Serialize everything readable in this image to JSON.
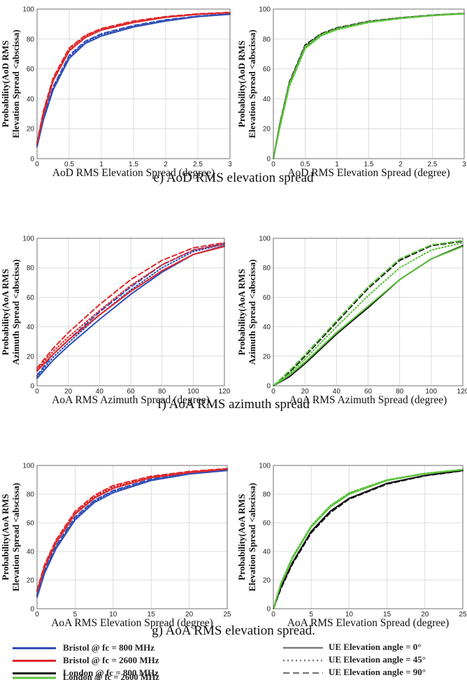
{
  "captions": {
    "e": "e) AoD RMS elevation spread",
    "f": "f) AoA RMS azimuth spread",
    "g": "g) AoA RMS elevation spread."
  },
  "legend": {
    "colors": [
      {
        "label": "Bristol @ fc = 800 MHz",
        "color": "#2f4fb8"
      },
      {
        "label": "Bristol @ fc = 2600 MHz",
        "color": "#e0272a"
      },
      {
        "label": "London @ fc = 800 MHz",
        "color": "#111111"
      },
      {
        "label": "London @ fc = 2600 MHz",
        "color": "#5cc23c"
      }
    ],
    "styles": [
      {
        "label": "UE Elevation angle = 0°",
        "dash": "solid"
      },
      {
        "label": "UE Elevation angle = 45°",
        "dash": "dotted"
      },
      {
        "label": "UE Elevation angle = 90°",
        "dash": "dashed"
      }
    ]
  },
  "chart_data": [
    {
      "id": "e-left",
      "type": "line",
      "xlabel": "AoD RMS Elevation Spread (degree)",
      "ylabel": [
        "Probability(AoD RMS",
        "Elevation Spread <abscissa)"
      ],
      "xlim": [
        0,
        3
      ],
      "ylim": [
        0,
        100
      ],
      "xticks": [
        "0",
        "0.5",
        "1",
        "1.5",
        "2",
        "2.5",
        "3"
      ],
      "yticks": [
        "0",
        "20",
        "40",
        "60",
        "80",
        "100"
      ],
      "grid": true,
      "series": [
        {
          "color": "#2f4fb8",
          "dash": "solid",
          "x": [
            0,
            0.1,
            0.25,
            0.5,
            0.75,
            1,
            1.5,
            2,
            2.5,
            3
          ],
          "y": [
            8,
            26,
            46,
            67,
            77,
            82,
            88,
            92,
            95,
            96.5
          ]
        },
        {
          "color": "#2f4fb8",
          "dash": "dotted",
          "x": [
            0,
            0.1,
            0.25,
            0.5,
            0.75,
            1,
            1.5,
            2,
            2.5,
            3
          ],
          "y": [
            8,
            27,
            47,
            68,
            78,
            83,
            88.5,
            92.5,
            95.2,
            96.7
          ]
        },
        {
          "color": "#2f4fb8",
          "dash": "dashed",
          "x": [
            0,
            0.1,
            0.25,
            0.5,
            0.75,
            1,
            1.5,
            2,
            2.5,
            3
          ],
          "y": [
            9,
            28,
            48,
            69,
            78.5,
            83.5,
            89,
            92.8,
            95.3,
            96.8
          ]
        },
        {
          "color": "#e0272a",
          "dash": "solid",
          "x": [
            0,
            0.1,
            0.25,
            0.5,
            0.75,
            1,
            1.5,
            2,
            2.5,
            3
          ],
          "y": [
            10,
            30,
            52,
            72,
            81,
            86,
            91,
            94.5,
            96.5,
            97.5
          ]
        },
        {
          "color": "#e0272a",
          "dash": "dotted",
          "x": [
            0,
            0.1,
            0.25,
            0.5,
            0.75,
            1,
            1.5,
            2,
            2.5,
            3
          ],
          "y": [
            10,
            31,
            53,
            73,
            82,
            86.5,
            91.5,
            94.7,
            96.6,
            97.6
          ]
        },
        {
          "color": "#e0272a",
          "dash": "dashed",
          "x": [
            0,
            0.1,
            0.25,
            0.5,
            0.75,
            1,
            1.5,
            2,
            2.5,
            3
          ],
          "y": [
            11,
            32,
            54,
            74,
            82.5,
            87,
            92,
            95,
            96.8,
            97.8
          ]
        }
      ]
    },
    {
      "id": "e-right",
      "type": "line",
      "xlabel": "AoD RMS Elevation Spread (degree)",
      "ylabel": [
        "Probability(AoD RMS",
        "Elevation Spread <abscissa)"
      ],
      "xlim": [
        0,
        3
      ],
      "ylim": [
        0,
        100
      ],
      "xticks": [
        "0",
        "0.5",
        "1",
        "1.5",
        "2",
        "2.5",
        "3"
      ],
      "yticks": [
        "0",
        "20",
        "40",
        "60",
        "80",
        "100"
      ],
      "grid": true,
      "series": [
        {
          "color": "#111111",
          "dash": "solid",
          "x": [
            0,
            0.1,
            0.25,
            0.5,
            0.75,
            1,
            1.5,
            2,
            2.5,
            3
          ],
          "y": [
            0,
            22,
            50,
            75,
            83,
            87,
            91.5,
            94,
            95.8,
            97
          ]
        },
        {
          "color": "#111111",
          "dash": "dashed",
          "x": [
            0,
            0.1,
            0.25,
            0.5,
            0.75,
            1,
            1.5,
            2,
            2.5,
            3
          ],
          "y": [
            0,
            23,
            51,
            76,
            83.5,
            87.5,
            91.8,
            94.2,
            96,
            97.1
          ]
        },
        {
          "color": "#5cc23c",
          "dash": "solid",
          "x": [
            0,
            0.1,
            0.25,
            0.5,
            0.75,
            1,
            1.5,
            2,
            2.5,
            3
          ],
          "y": [
            0,
            21,
            49,
            74,
            82.5,
            86.5,
            91.2,
            93.8,
            95.7,
            96.9
          ]
        },
        {
          "color": "#5cc23c",
          "dash": "dotted",
          "x": [
            0,
            0.1,
            0.25,
            0.5,
            0.75,
            1,
            1.5,
            2,
            2.5,
            3
          ],
          "y": [
            0,
            20,
            48,
            73.5,
            82,
            86.2,
            91,
            93.7,
            95.6,
            96.8
          ]
        },
        {
          "color": "#5cc23c",
          "dash": "dashed",
          "x": [
            0,
            0.1,
            0.25,
            0.5,
            0.75,
            1,
            1.5,
            2,
            2.5,
            3
          ],
          "y": [
            0,
            22,
            50,
            75,
            83,
            87,
            91.5,
            94,
            95.8,
            97
          ]
        }
      ]
    },
    {
      "id": "f-left",
      "type": "line",
      "xlabel": "AoA RMS Azimuth Spread (degree)",
      "ylabel": [
        "Probability(AoA RMS",
        "Azimuth Spread <abscissa)"
      ],
      "xlim": [
        0,
        120
      ],
      "ylim": [
        0,
        100
      ],
      "xticks": [
        "0",
        "20",
        "40",
        "60",
        "80",
        "100",
        "120"
      ],
      "yticks": [
        "0",
        "20",
        "40",
        "60",
        "80",
        "100"
      ],
      "grid": true,
      "series": [
        {
          "color": "#2f4fb8",
          "dash": "solid",
          "x": [
            0,
            10,
            20,
            40,
            60,
            80,
            100,
            120
          ],
          "y": [
            5,
            17,
            27,
            45,
            62,
            77,
            89,
            95
          ]
        },
        {
          "color": "#2f4fb8",
          "dash": "dotted",
          "x": [
            0,
            10,
            20,
            40,
            60,
            80,
            100,
            120
          ],
          "y": [
            6,
            19,
            29,
            48,
            65,
            80,
            91,
            96
          ]
        },
        {
          "color": "#2f4fb8",
          "dash": "dashed",
          "x": [
            0,
            10,
            20,
            40,
            60,
            80,
            100,
            120
          ],
          "y": [
            7,
            21,
            31,
            50,
            67,
            82,
            92,
            96.5
          ]
        },
        {
          "color": "#e0272a",
          "dash": "solid",
          "x": [
            0,
            10,
            20,
            40,
            60,
            80,
            100,
            120
          ],
          "y": [
            10,
            21,
            31,
            48,
            64,
            78,
            89,
            94.5
          ]
        },
        {
          "color": "#e0272a",
          "dash": "dotted",
          "x": [
            0,
            10,
            20,
            40,
            60,
            80,
            100,
            120
          ],
          "y": [
            11,
            23,
            33,
            51,
            68,
            82,
            92,
            96
          ]
        },
        {
          "color": "#e0272a",
          "dash": "dashed",
          "x": [
            0,
            10,
            20,
            40,
            60,
            80,
            100,
            120
          ],
          "y": [
            12,
            25,
            36,
            55,
            72,
            85,
            93.5,
            97
          ]
        }
      ]
    },
    {
      "id": "f-right",
      "type": "line",
      "xlabel": "AoA RMS Azimuth Spread (degree)",
      "ylabel": [
        "Probability(AoA RMS",
        "Azimuth Spread <abscissa)"
      ],
      "xlim": [
        0,
        120
      ],
      "ylim": [
        0,
        100
      ],
      "xticks": [
        "0",
        "20",
        "40",
        "60",
        "80",
        "100",
        "120"
      ],
      "yticks": [
        "0",
        "20",
        "40",
        "60",
        "80",
        "100"
      ],
      "grid": true,
      "series": [
        {
          "color": "#111111",
          "dash": "solid",
          "x": [
            0,
            10,
            20,
            40,
            60,
            80,
            100,
            120
          ],
          "y": [
            0,
            6,
            15,
            35,
            53,
            72,
            86,
            95
          ]
        },
        {
          "color": "#111111",
          "dash": "dashed",
          "x": [
            0,
            10,
            20,
            40,
            60,
            80,
            100,
            120
          ],
          "y": [
            0,
            9,
            20,
            43,
            66,
            85,
            95,
            98
          ]
        },
        {
          "color": "#5cc23c",
          "dash": "solid",
          "x": [
            0,
            10,
            20,
            40,
            60,
            80,
            100,
            120
          ],
          "y": [
            0,
            7,
            16,
            36,
            54,
            72,
            86,
            94.5
          ]
        },
        {
          "color": "#5cc23c",
          "dash": "dotted",
          "x": [
            0,
            10,
            20,
            40,
            60,
            80,
            100,
            120
          ],
          "y": [
            0,
            8,
            18,
            40,
            61,
            80,
            92,
            97
          ]
        },
        {
          "color": "#5cc23c",
          "dash": "dashed",
          "x": [
            0,
            10,
            20,
            40,
            60,
            80,
            100,
            120
          ],
          "y": [
            0,
            10,
            21,
            44,
            67,
            86,
            95.5,
            98.5
          ]
        }
      ]
    },
    {
      "id": "g-left",
      "type": "line",
      "xlabel": "AoA RMS Elevation Spread (degree)",
      "ylabel": [
        "Probability(AoA RMS",
        "Elevation Spread <abscissa)"
      ],
      "xlim": [
        0,
        25
      ],
      "ylim": [
        0,
        100
      ],
      "xticks": [
        "0",
        "5",
        "10",
        "15",
        "20",
        "25"
      ],
      "yticks": [
        "0",
        "20",
        "40",
        "60",
        "80",
        "100"
      ],
      "grid": true,
      "series": [
        {
          "color": "#2f4fb8",
          "dash": "solid",
          "x": [
            0,
            1,
            2.5,
            5,
            7.5,
            10,
            15,
            20,
            25
          ],
          "y": [
            8,
            25,
            42,
            62,
            74,
            81,
            89.5,
            94,
            96.5
          ]
        },
        {
          "color": "#2f4fb8",
          "dash": "dotted",
          "x": [
            0,
            1,
            2.5,
            5,
            7.5,
            10,
            15,
            20,
            25
          ],
          "y": [
            9,
            26,
            43,
            63,
            75,
            82,
            90,
            94.5,
            96.8
          ]
        },
        {
          "color": "#2f4fb8",
          "dash": "dashed",
          "x": [
            0,
            1,
            2.5,
            5,
            7.5,
            10,
            15,
            20,
            25
          ],
          "y": [
            10,
            27,
            44,
            64,
            75.5,
            82.5,
            90.5,
            94.7,
            97
          ]
        },
        {
          "color": "#e0272a",
          "dash": "solid",
          "x": [
            0,
            1,
            2.5,
            5,
            7.5,
            10,
            15,
            20,
            25
          ],
          "y": [
            12,
            29,
            46,
            66,
            77,
            84,
            91.5,
            95,
            97.5
          ]
        },
        {
          "color": "#e0272a",
          "dash": "dotted",
          "x": [
            0,
            1,
            2.5,
            5,
            7.5,
            10,
            15,
            20,
            25
          ],
          "y": [
            12,
            30,
            47,
            67,
            78,
            85,
            92,
            95.5,
            97.6
          ]
        },
        {
          "color": "#e0272a",
          "dash": "dashed",
          "x": [
            0,
            1,
            2.5,
            5,
            7.5,
            10,
            15,
            20,
            25
          ],
          "y": [
            13,
            31,
            48,
            68,
            79,
            86,
            92.5,
            95.8,
            97.8
          ]
        }
      ]
    },
    {
      "id": "g-right",
      "type": "line",
      "xlabel": "AoA RMS Elevation Spread (degree)",
      "ylabel": [
        "Probability(AoA RMS",
        "Elevation Spread <abscissa)"
      ],
      "xlim": [
        0,
        25
      ],
      "ylim": [
        0,
        100
      ],
      "xticks": [
        "0",
        "5",
        "10",
        "15",
        "20",
        "25"
      ],
      "yticks": [
        "0",
        "20",
        "40",
        "60",
        "80",
        "100"
      ],
      "grid": true,
      "series": [
        {
          "color": "#111111",
          "dash": "solid",
          "x": [
            0,
            1,
            2.5,
            5,
            7.5,
            10,
            15,
            20,
            25
          ],
          "y": [
            0,
            15,
            32,
            54,
            68,
            77,
            87.5,
            93,
            96.5
          ]
        },
        {
          "color": "#111111",
          "dash": "dashed",
          "x": [
            0,
            1,
            2.5,
            5,
            7.5,
            10,
            15,
            20,
            25
          ],
          "y": [
            0,
            14,
            31,
            53,
            67,
            76.5,
            87,
            92.8,
            96.3
          ]
        },
        {
          "color": "#5cc23c",
          "dash": "solid",
          "x": [
            0,
            1,
            2.5,
            5,
            7.5,
            10,
            15,
            20,
            25
          ],
          "y": [
            0,
            17,
            35,
            57,
            71,
            80,
            89.5,
            94.2,
            97
          ]
        },
        {
          "color": "#5cc23c",
          "dash": "dotted",
          "x": [
            0,
            1,
            2.5,
            5,
            7.5,
            10,
            15,
            20,
            25
          ],
          "y": [
            0,
            18,
            36,
            58,
            72,
            81,
            90,
            94.5,
            97.2
          ]
        },
        {
          "color": "#5cc23c",
          "dash": "dashed",
          "x": [
            0,
            1,
            2.5,
            5,
            7.5,
            10,
            15,
            20,
            25
          ],
          "y": [
            0,
            17.5,
            35.5,
            57.5,
            71.5,
            80.5,
            89.8,
            94.4,
            97.1
          ]
        }
      ]
    }
  ]
}
